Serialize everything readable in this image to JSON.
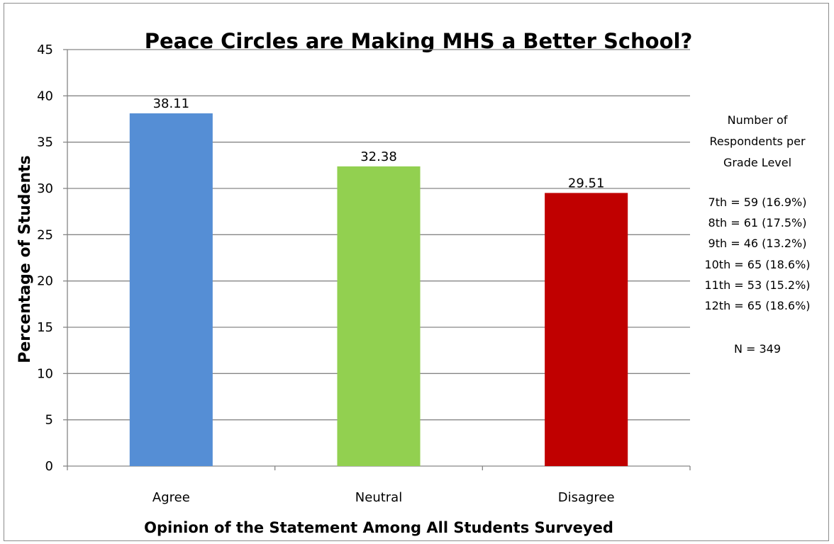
{
  "chart_data": {
    "type": "bar",
    "title": "Peace Circles are Making MHS a Better School?",
    "xlabel": "Opinion of the Statement Among All Students Surveyed",
    "ylabel": "Percentage of Students",
    "categories": [
      "Agree",
      "Neutral",
      "Disagree"
    ],
    "values": [
      38.11,
      32.38,
      29.51
    ],
    "data_labels": [
      "38.11",
      "32.38",
      "29.51"
    ],
    "bar_colors": [
      "#558ed5",
      "#92d050",
      "#c00000"
    ],
    "ylim": [
      0,
      45
    ],
    "yticks": [
      0,
      5,
      10,
      15,
      20,
      25,
      30,
      35,
      40,
      45
    ],
    "grid": true,
    "legend": "none"
  },
  "side_note": {
    "heading_lines": [
      "Number of",
      "Respondents per",
      "Grade Level"
    ],
    "grade_lines": [
      "7th = 59 (16.9%)",
      "8th = 61 (17.5%)",
      "9th = 46 (13.2%)",
      "10th = 65 (18.6%)",
      "11th = 53 (15.2%)",
      "12th = 65 (18.6%)"
    ],
    "total": "N = 349"
  }
}
